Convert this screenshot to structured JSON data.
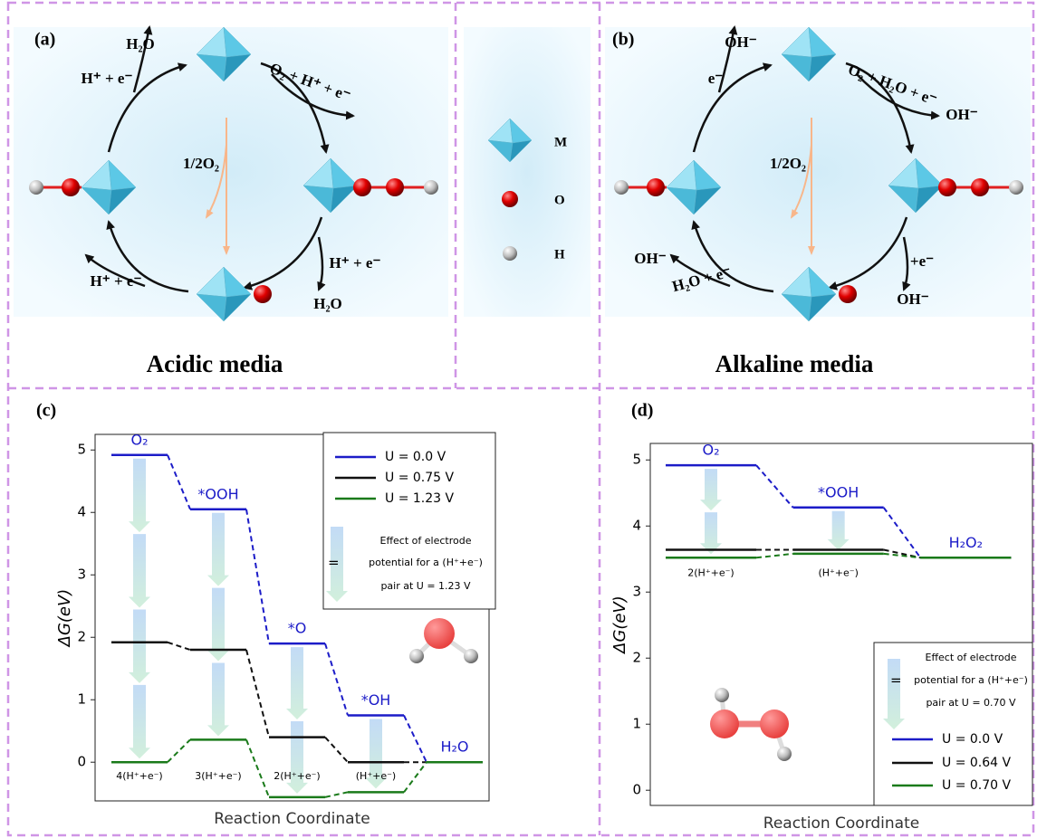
{
  "panel_a": {
    "label": "(a)",
    "title": "Acidic media",
    "annotations": [
      "H⁺ + e⁻",
      "H₂O",
      "O₂ + H⁺ + e⁻",
      "1/2O₂",
      "H⁺ + e⁻",
      "H₂O",
      "H⁺ + e⁻"
    ]
  },
  "panel_b": {
    "label": "(b)",
    "title": "Alkaline media",
    "annotations": [
      "e⁻",
      "OH⁻",
      "O₂ + H₂O + e⁻",
      "OH⁻",
      "1/2O₂",
      "+e⁻",
      "OH⁻",
      "OH⁻",
      "H₂O + e⁻"
    ]
  },
  "legend": [
    "M",
    "O",
    "H"
  ],
  "chart_data": [
    {
      "type": "step",
      "label": "(c)",
      "xlabel": "Reaction Coordinate",
      "ylabel": "ΔG(eV)",
      "categories": [
        "O₂",
        "*OOH",
        "*O",
        "*OH",
        "H₂O"
      ],
      "category_color": "#1c1cc8",
      "step_labels": [
        "4(H⁺+e⁻)",
        "3(H⁺+e⁻)",
        "2(H⁺+e⁻)",
        "(H⁺+e⁻)"
      ],
      "series": [
        {
          "name": "U = 0.0 V",
          "color": "#1c1cc8",
          "values": [
            4.92,
            4.05,
            1.9,
            0.75,
            0
          ]
        },
        {
          "name": "U = 0.75 V",
          "color": "#111111",
          "values": [
            1.92,
            1.8,
            0.4,
            0,
            0
          ]
        },
        {
          "name": "U = 1.23 V",
          "color": "#1a7a1a",
          "values": [
            0,
            0.36,
            -0.56,
            -0.48,
            0
          ]
        }
      ],
      "note": [
        "Effect of electrode",
        "=",
        "potential for a (H⁺+e⁻)",
        "pair at U = 1.23 V"
      ],
      "ylim": [
        -0.62,
        5.25
      ],
      "yticks": [
        0,
        1,
        2,
        3,
        4,
        5
      ]
    },
    {
      "type": "step",
      "label": "(d)",
      "xlabel": "Reaction Coordinate",
      "ylabel": "ΔG(eV)",
      "categories": [
        "O₂",
        "*OOH",
        "H₂O₂"
      ],
      "category_color": "#1c1cc8",
      "step_labels": [
        "2(H⁺+e⁻)",
        "(H⁺+e⁻)"
      ],
      "series": [
        {
          "name": "U = 0.0 V",
          "color": "#1c1cc8",
          "values": [
            4.92,
            4.28,
            3.52
          ]
        },
        {
          "name": "U = 0.64 V",
          "color": "#111111",
          "values": [
            3.64,
            3.64,
            3.52
          ]
        },
        {
          "name": "U = 0.70 V",
          "color": "#1a7a1a",
          "values": [
            3.52,
            3.58,
            3.52
          ]
        }
      ],
      "note": [
        "Effect of electrode",
        "=",
        "potential for a (H⁺+e⁻)",
        "pair at U = 0.70 V"
      ],
      "ylim": [
        -0.23,
        5.25
      ],
      "yticks": [
        0,
        1,
        2,
        3,
        4,
        5
      ]
    }
  ]
}
